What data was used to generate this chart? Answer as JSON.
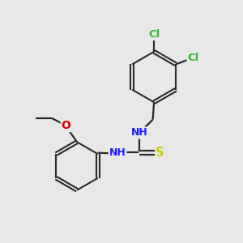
{
  "background_color": "#e8e8e8",
  "bond_color": "#2a2a2a",
  "atom_colors": {
    "Cl": "#3ab83a",
    "N": "#1a1aff",
    "S": "#cccc00",
    "O": "#dd0000",
    "C": "#1a1a1a",
    "H": "#707070"
  },
  "figsize": [
    3.0,
    3.0
  ],
  "dpi": 100
}
